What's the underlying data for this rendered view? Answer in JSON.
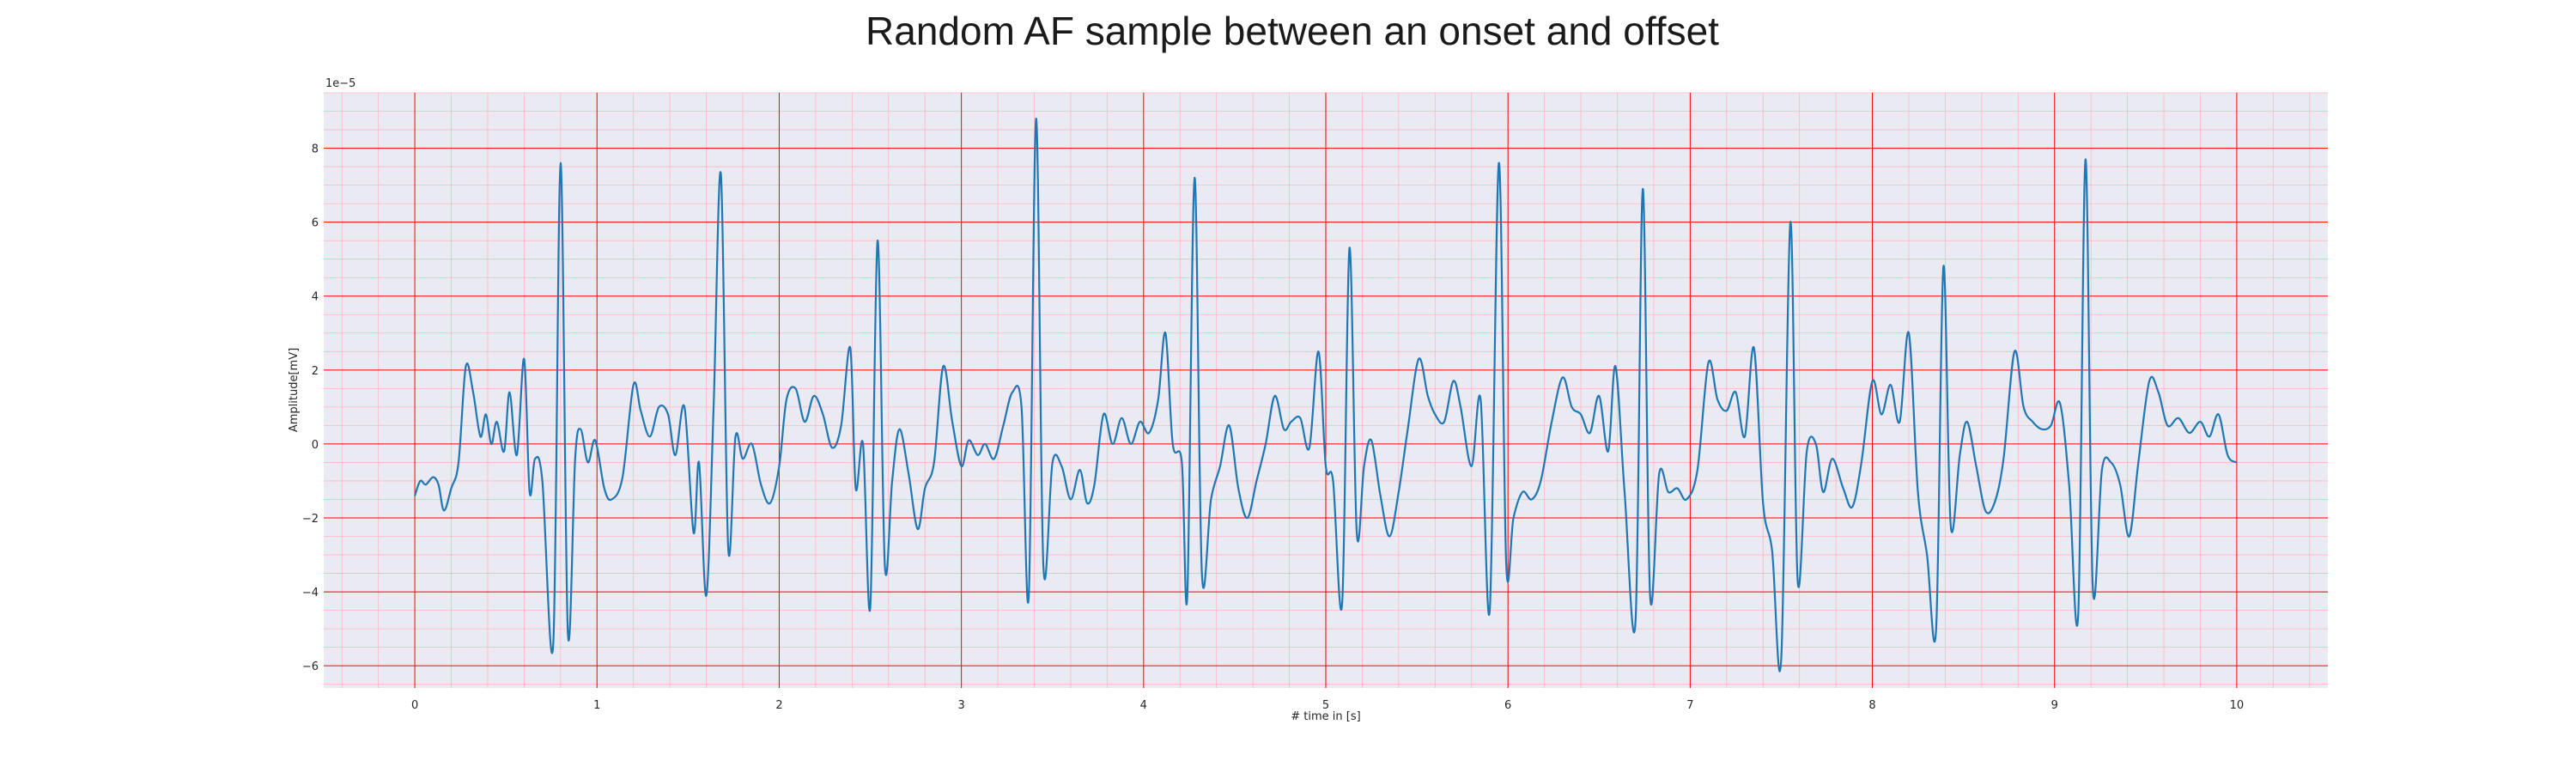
{
  "chart_data": {
    "type": "line",
    "title": "Random AF sample between an onset and offset",
    "xlabel": "# time in [s]",
    "ylabel": "Amplitude[mV]",
    "y_offset_label": "1e−5",
    "y_scale": 1e-05,
    "xlim": [
      -0.5,
      10.5
    ],
    "ylim": [
      -6.6,
      9.5
    ],
    "x_ticks": [
      0,
      1,
      2,
      3,
      4,
      5,
      6,
      7,
      8,
      9,
      10
    ],
    "x_tick_labels": [
      "0",
      "1",
      "2",
      "3",
      "4",
      "5",
      "6",
      "7",
      "8",
      "9",
      "10"
    ],
    "y_ticks": [
      -6,
      -4,
      -2,
      0,
      2,
      4,
      6,
      8
    ],
    "y_tick_labels": [
      "−6",
      "−4",
      "−2",
      "0",
      "2",
      "4",
      "6",
      "8"
    ],
    "grid": true,
    "colors": {
      "line": "#1f77b4",
      "plot_background": "#eaeaf2",
      "major_grid": "#ff0000",
      "minor_grid": "#ffb6c1"
    },
    "series": [
      {
        "points": [
          [
            0.0,
            -1.4
          ],
          [
            0.03,
            -1.0
          ],
          [
            0.06,
            -1.1
          ],
          [
            0.1,
            -0.9
          ],
          [
            0.13,
            -1.1
          ],
          [
            0.16,
            -1.8
          ],
          [
            0.2,
            -1.2
          ],
          [
            0.24,
            -0.5
          ],
          [
            0.28,
            2.1
          ],
          [
            0.32,
            1.4
          ],
          [
            0.36,
            0.2
          ],
          [
            0.39,
            0.8
          ],
          [
            0.42,
            0.0
          ],
          [
            0.45,
            0.6
          ],
          [
            0.49,
            -0.2
          ],
          [
            0.52,
            1.4
          ],
          [
            0.56,
            -0.3
          ],
          [
            0.6,
            2.3
          ],
          [
            0.63,
            -1.3
          ],
          [
            0.66,
            -0.4
          ],
          [
            0.7,
            -1.0
          ],
          [
            0.76,
            -5.4
          ],
          [
            0.8,
            7.6
          ],
          [
            0.84,
            -5.1
          ],
          [
            0.88,
            -0.4
          ],
          [
            0.91,
            0.4
          ],
          [
            0.95,
            -0.5
          ],
          [
            0.99,
            0.1
          ],
          [
            1.04,
            -1.2
          ],
          [
            1.08,
            -1.5
          ],
          [
            1.14,
            -0.9
          ],
          [
            1.2,
            1.6
          ],
          [
            1.24,
            0.9
          ],
          [
            1.29,
            0.2
          ],
          [
            1.34,
            1.0
          ],
          [
            1.39,
            0.8
          ],
          [
            1.43,
            -0.3
          ],
          [
            1.48,
            1.0
          ],
          [
            1.53,
            -2.4
          ],
          [
            1.56,
            -0.5
          ],
          [
            1.6,
            -4.1
          ],
          [
            1.64,
            1.0
          ],
          [
            1.68,
            7.3
          ],
          [
            1.72,
            -2.8
          ],
          [
            1.76,
            0.2
          ],
          [
            1.8,
            -0.4
          ],
          [
            1.85,
            0.0
          ],
          [
            1.9,
            -1.1
          ],
          [
            1.95,
            -1.6
          ],
          [
            2.0,
            -0.6
          ],
          [
            2.04,
            1.2
          ],
          [
            2.09,
            1.5
          ],
          [
            2.14,
            0.6
          ],
          [
            2.19,
            1.3
          ],
          [
            2.24,
            0.8
          ],
          [
            2.29,
            -0.1
          ],
          [
            2.34,
            0.5
          ],
          [
            2.39,
            2.6
          ],
          [
            2.42,
            -1.2
          ],
          [
            2.46,
            0.0
          ],
          [
            2.5,
            -4.4
          ],
          [
            2.54,
            5.5
          ],
          [
            2.58,
            -3.3
          ],
          [
            2.62,
            -1.0
          ],
          [
            2.66,
            0.4
          ],
          [
            2.71,
            -0.8
          ],
          [
            2.76,
            -2.3
          ],
          [
            2.8,
            -1.2
          ],
          [
            2.85,
            -0.5
          ],
          [
            2.9,
            2.1
          ],
          [
            2.95,
            0.6
          ],
          [
            3.0,
            -0.6
          ],
          [
            3.04,
            0.1
          ],
          [
            3.09,
            -0.3
          ],
          [
            3.13,
            0.0
          ],
          [
            3.18,
            -0.4
          ],
          [
            3.23,
            0.5
          ],
          [
            3.28,
            1.4
          ],
          [
            3.33,
            1.0
          ],
          [
            3.37,
            -4.1
          ],
          [
            3.41,
            8.8
          ],
          [
            3.45,
            -3.3
          ],
          [
            3.5,
            -0.5
          ],
          [
            3.55,
            -0.6
          ],
          [
            3.6,
            -1.5
          ],
          [
            3.65,
            -0.7
          ],
          [
            3.69,
            -1.6
          ],
          [
            3.73,
            -1.1
          ],
          [
            3.78,
            0.8
          ],
          [
            3.83,
            0.0
          ],
          [
            3.88,
            0.7
          ],
          [
            3.93,
            0.0
          ],
          [
            3.98,
            0.6
          ],
          [
            4.03,
            0.3
          ],
          [
            4.08,
            1.2
          ],
          [
            4.12,
            3.0
          ],
          [
            4.16,
            0.0
          ],
          [
            4.21,
            -0.5
          ],
          [
            4.24,
            -4.1
          ],
          [
            4.28,
            7.2
          ],
          [
            4.32,
            -3.5
          ],
          [
            4.37,
            -1.5
          ],
          [
            4.42,
            -0.6
          ],
          [
            4.47,
            0.5
          ],
          [
            4.52,
            -1.2
          ],
          [
            4.57,
            -2.0
          ],
          [
            4.62,
            -1.0
          ],
          [
            4.67,
            0.0
          ],
          [
            4.72,
            1.3
          ],
          [
            4.77,
            0.4
          ],
          [
            4.81,
            0.6
          ],
          [
            4.86,
            0.7
          ],
          [
            4.91,
            -0.1
          ],
          [
            4.96,
            2.5
          ],
          [
            5.0,
            -0.6
          ],
          [
            5.04,
            -1.0
          ],
          [
            5.09,
            -4.3
          ],
          [
            5.13,
            5.3
          ],
          [
            5.17,
            -2.4
          ],
          [
            5.21,
            -0.6
          ],
          [
            5.25,
            0.1
          ],
          [
            5.3,
            -1.4
          ],
          [
            5.35,
            -2.5
          ],
          [
            5.4,
            -1.3
          ],
          [
            5.45,
            0.4
          ],
          [
            5.51,
            2.3
          ],
          [
            5.56,
            1.3
          ],
          [
            5.6,
            0.8
          ],
          [
            5.65,
            0.6
          ],
          [
            5.7,
            1.7
          ],
          [
            5.74,
            1.0
          ],
          [
            5.8,
            -0.6
          ],
          [
            5.85,
            1.2
          ],
          [
            5.9,
            -4.5
          ],
          [
            5.95,
            7.6
          ],
          [
            5.99,
            -3.2
          ],
          [
            6.03,
            -2.0
          ],
          [
            6.08,
            -1.3
          ],
          [
            6.13,
            -1.5
          ],
          [
            6.18,
            -1.0
          ],
          [
            6.24,
            0.6
          ],
          [
            6.3,
            1.8
          ],
          [
            6.35,
            1.0
          ],
          [
            6.4,
            0.8
          ],
          [
            6.45,
            0.3
          ],
          [
            6.5,
            1.3
          ],
          [
            6.55,
            -0.2
          ],
          [
            6.59,
            2.1
          ],
          [
            6.64,
            -1.3
          ],
          [
            6.7,
            -4.8
          ],
          [
            6.74,
            6.9
          ],
          [
            6.78,
            -4.1
          ],
          [
            6.83,
            -0.8
          ],
          [
            6.88,
            -1.3
          ],
          [
            6.93,
            -1.2
          ],
          [
            6.98,
            -1.5
          ],
          [
            7.04,
            -0.7
          ],
          [
            7.1,
            2.2
          ],
          [
            7.15,
            1.2
          ],
          [
            7.2,
            0.9
          ],
          [
            7.25,
            1.4
          ],
          [
            7.3,
            0.2
          ],
          [
            7.35,
            2.6
          ],
          [
            7.4,
            -1.6
          ],
          [
            7.45,
            -2.9
          ],
          [
            7.5,
            -5.8
          ],
          [
            7.55,
            6.0
          ],
          [
            7.59,
            -3.7
          ],
          [
            7.64,
            -0.2
          ],
          [
            7.69,
            0.0
          ],
          [
            7.73,
            -1.3
          ],
          [
            7.78,
            -0.4
          ],
          [
            7.84,
            -1.2
          ],
          [
            7.89,
            -1.7
          ],
          [
            7.94,
            -0.5
          ],
          [
            8.0,
            1.7
          ],
          [
            8.05,
            0.8
          ],
          [
            8.1,
            1.6
          ],
          [
            8.15,
            0.6
          ],
          [
            8.2,
            3.0
          ],
          [
            8.25,
            -1.3
          ],
          [
            8.3,
            -3.0
          ],
          [
            8.35,
            -5.0
          ],
          [
            8.39,
            4.8
          ],
          [
            8.43,
            -2.2
          ],
          [
            8.48,
            -0.3
          ],
          [
            8.52,
            0.6
          ],
          [
            8.57,
            -0.6
          ],
          [
            8.62,
            -1.8
          ],
          [
            8.67,
            -1.6
          ],
          [
            8.72,
            -0.4
          ],
          [
            8.78,
            2.5
          ],
          [
            8.83,
            1.0
          ],
          [
            8.88,
            0.6
          ],
          [
            8.93,
            0.4
          ],
          [
            8.98,
            0.5
          ],
          [
            9.03,
            1.1
          ],
          [
            9.08,
            -1.1
          ],
          [
            9.13,
            -4.6
          ],
          [
            9.17,
            7.7
          ],
          [
            9.21,
            -3.9
          ],
          [
            9.26,
            -0.7
          ],
          [
            9.31,
            -0.5
          ],
          [
            9.36,
            -1.1
          ],
          [
            9.41,
            -2.5
          ],
          [
            9.46,
            -0.5
          ],
          [
            9.52,
            1.7
          ],
          [
            9.57,
            1.4
          ],
          [
            9.62,
            0.5
          ],
          [
            9.68,
            0.7
          ],
          [
            9.74,
            0.3
          ],
          [
            9.8,
            0.6
          ],
          [
            9.85,
            0.2
          ],
          [
            9.9,
            0.8
          ],
          [
            9.95,
            -0.3
          ],
          [
            10.0,
            -0.5
          ]
        ]
      }
    ]
  }
}
